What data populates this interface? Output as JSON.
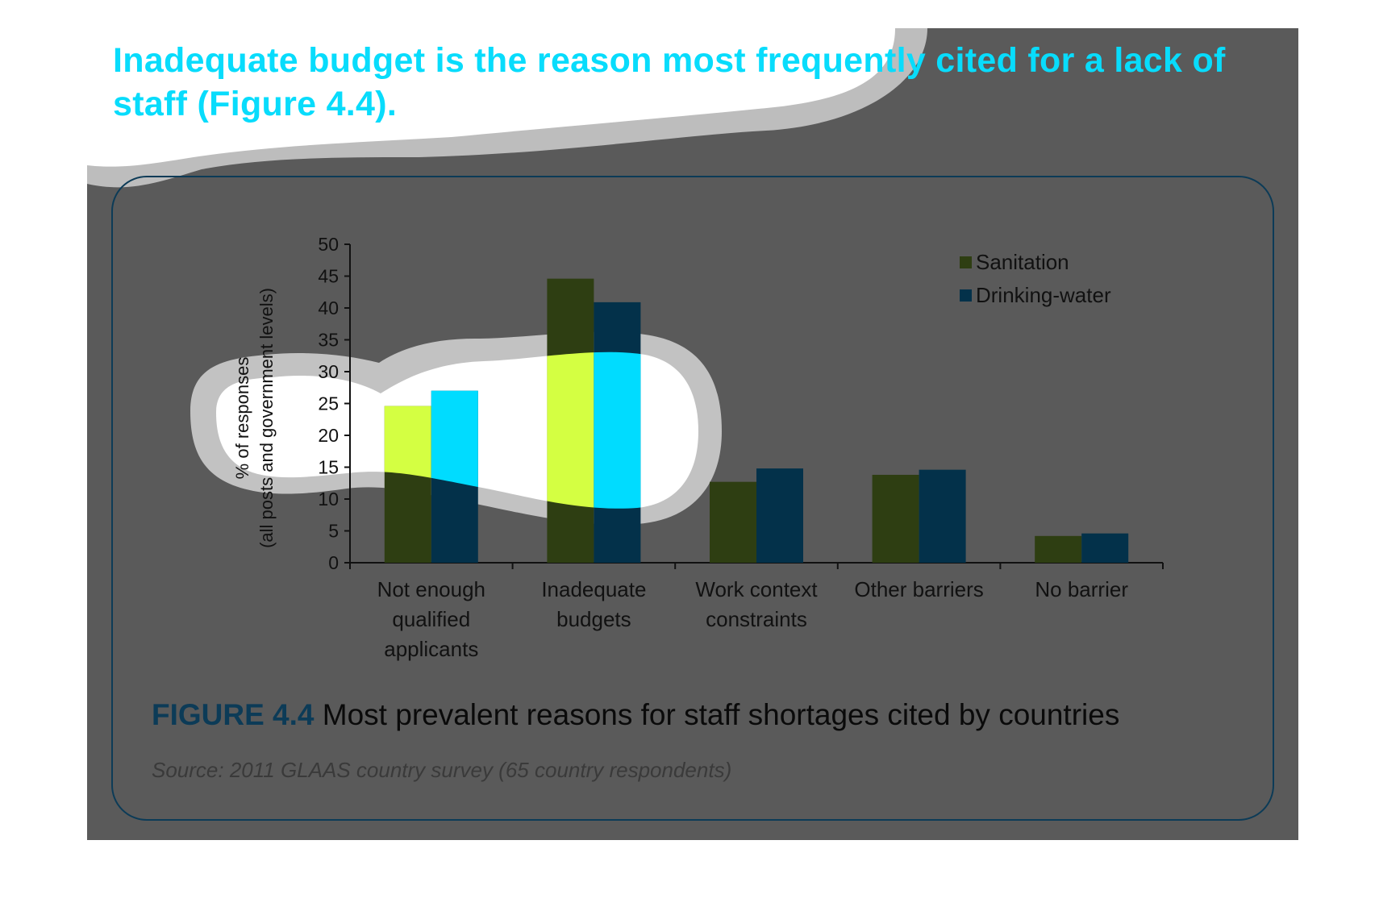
{
  "headline": "Inadequate budget is the reason most frequently cited for a lack of staff (Figure 4.4).",
  "figure": {
    "label": "FIGURE 4.4",
    "title": "Most prevalent reasons for staff shortages cited by countries",
    "source": "Source: 2011 GLAAS country survey (65 country respondents)"
  },
  "colors": {
    "background": "#5a5a5a",
    "headline": "#08dcfc",
    "panel_border": "#0c3b57",
    "sanitation": "#2e3e12",
    "drinking_water": "#03314a",
    "sanitation_highlight": "#d4ff42",
    "drinking_water_highlight": "#00dcff"
  },
  "chart_data": {
    "type": "bar",
    "categories": [
      [
        "Not enough",
        "qualified",
        "applicants"
      ],
      [
        "Inadequate",
        "budgets"
      ],
      [
        "Work context",
        "constraints"
      ],
      [
        "Other barriers"
      ],
      [
        "No barrier"
      ]
    ],
    "series": [
      {
        "name": "Sanitation",
        "color_key": "sanitation",
        "values": [
          24.6,
          44.6,
          12.7,
          13.8,
          4.2
        ]
      },
      {
        "name": "Drinking-water",
        "color_key": "drinking_water",
        "values": [
          27.0,
          40.9,
          14.8,
          14.6,
          4.6
        ]
      }
    ],
    "ylabel": [
      "% of responses",
      "(all posts and government levels)"
    ],
    "ylim": [
      0,
      50
    ],
    "yticks": [
      0,
      5,
      10,
      15,
      20,
      25,
      30,
      35,
      40,
      45,
      50
    ],
    "legend_position": "top-right",
    "grid": false
  }
}
